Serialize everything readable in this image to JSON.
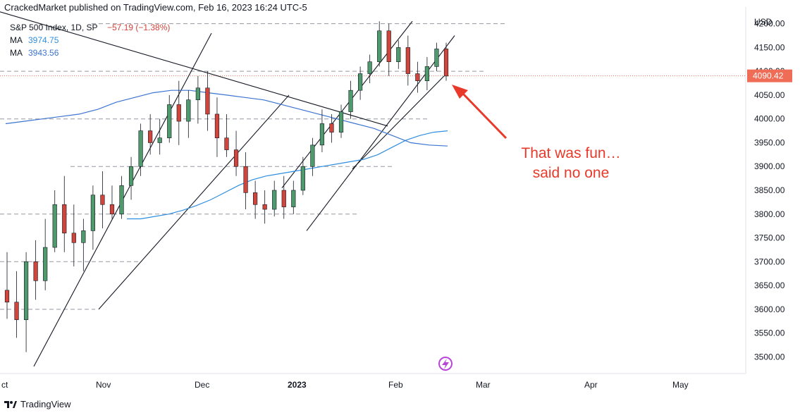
{
  "header": {
    "publisher_line": "CrackedMarket published on TradingView.com, Feb 16, 2023 16:24 UTC-5"
  },
  "footer": {
    "brand": "TradingView"
  },
  "legend": {
    "symbol_line": "S&P 500 Index, 1D, SP",
    "change": "−57.19 (−1.38%)",
    "ma1_label": "MA",
    "ma1_value": "3974.75",
    "ma2_label": "MA",
    "ma2_value": "3943.56"
  },
  "annotation": {
    "line1": "That was fun…",
    "line2": "said no one"
  },
  "colors": {
    "up": "#4f9a6d",
    "down": "#d0453b",
    "ma_fast": "#2f8ee0",
    "ma_slow": "#3b74d1",
    "price_line": "#ef6d57",
    "arrow": "#e8392a",
    "text": "#131722"
  },
  "chart_data": {
    "type": "candlestick",
    "currency_label": "USD",
    "last_price": "4090.42",
    "y_ticks": [
      "4200.00",
      "4150.00",
      "4100.00",
      "4050.00",
      "4000.00",
      "3950.00",
      "3900.00",
      "3850.00",
      "3800.00",
      "3750.00",
      "3700.00",
      "3650.00",
      "3600.00",
      "3550.00",
      "3500.00"
    ],
    "ylim": [
      3465,
      4235
    ],
    "x_labels": [
      "ct",
      "Nov",
      "Dec",
      "2023",
      "Feb",
      "Mar",
      "Apr",
      "May"
    ],
    "candles": [
      [
        3640,
        3720,
        3580,
        3615
      ],
      [
        3615,
        3680,
        3540,
        3578
      ],
      [
        3578,
        3720,
        3510,
        3700
      ],
      [
        3700,
        3745,
        3620,
        3660
      ],
      [
        3660,
        3790,
        3640,
        3730
      ],
      [
        3730,
        3850,
        3720,
        3820
      ],
      [
        3820,
        3880,
        3720,
        3760
      ],
      [
        3760,
        3820,
        3690,
        3740
      ],
      [
        3740,
        3790,
        3680,
        3765
      ],
      [
        3765,
        3860,
        3725,
        3840
      ],
      [
        3840,
        3890,
        3770,
        3820
      ],
      [
        3820,
        3860,
        3790,
        3800
      ],
      [
        3800,
        3880,
        3790,
        3860
      ],
      [
        3860,
        3920,
        3830,
        3900
      ],
      [
        3900,
        3990,
        3880,
        3975
      ],
      [
        3975,
        4010,
        3925,
        3950
      ],
      [
        3950,
        4000,
        3925,
        3960
      ],
      [
        3960,
        4050,
        3950,
        4030
      ],
      [
        4030,
        4080,
        3945,
        3995
      ],
      [
        3995,
        4060,
        3960,
        4040
      ],
      [
        4040,
        4090,
        3990,
        4065
      ],
      [
        4065,
        4100,
        3975,
        4010
      ],
      [
        4010,
        4045,
        3920,
        3960
      ],
      [
        3960,
        4010,
        3920,
        3935
      ],
      [
        3935,
        3975,
        3880,
        3900
      ],
      [
        3900,
        3930,
        3810,
        3845
      ],
      [
        3845,
        3870,
        3790,
        3820
      ],
      [
        3820,
        3850,
        3780,
        3810
      ],
      [
        3810,
        3870,
        3795,
        3850
      ],
      [
        3850,
        3880,
        3790,
        3815
      ],
      [
        3815,
        3870,
        3800,
        3850
      ],
      [
        3850,
        3920,
        3840,
        3900
      ],
      [
        3900,
        3960,
        3880,
        3945
      ],
      [
        3945,
        4020,
        3930,
        3990
      ],
      [
        3990,
        4010,
        3950,
        3972
      ],
      [
        3972,
        4030,
        3960,
        4015
      ],
      [
        4015,
        4080,
        4000,
        4060
      ],
      [
        4060,
        4110,
        4040,
        4095
      ],
      [
        4095,
        4135,
        4075,
        4120
      ],
      [
        4120,
        4205,
        4110,
        4185
      ],
      [
        4185,
        4200,
        4090,
        4120
      ],
      [
        4120,
        4165,
        4105,
        4150
      ],
      [
        4150,
        4175,
        4070,
        4095
      ],
      [
        4095,
        4120,
        4055,
        4080
      ],
      [
        4080,
        4130,
        4060,
        4110
      ],
      [
        4110,
        4160,
        4100,
        4147
      ],
      [
        4147,
        4160,
        4080,
        4090
      ]
    ],
    "ma_fast": [
      3790,
      3790,
      3795,
      3800,
      3808,
      3818,
      3830,
      3845,
      3860,
      3872,
      3880,
      3885,
      3890,
      3895,
      3900,
      3905,
      3910,
      3915,
      3925,
      3940,
      3955,
      3965,
      3972,
      3975
    ],
    "ma_slow": [
      3990,
      3995,
      4000,
      4005,
      4010,
      4020,
      4035,
      4045,
      4055,
      4060,
      4060,
      4055,
      4050,
      4045,
      4040,
      4030,
      4020,
      4010,
      4000,
      3990,
      3980,
      3965,
      3950,
      3945,
      3943
    ]
  }
}
